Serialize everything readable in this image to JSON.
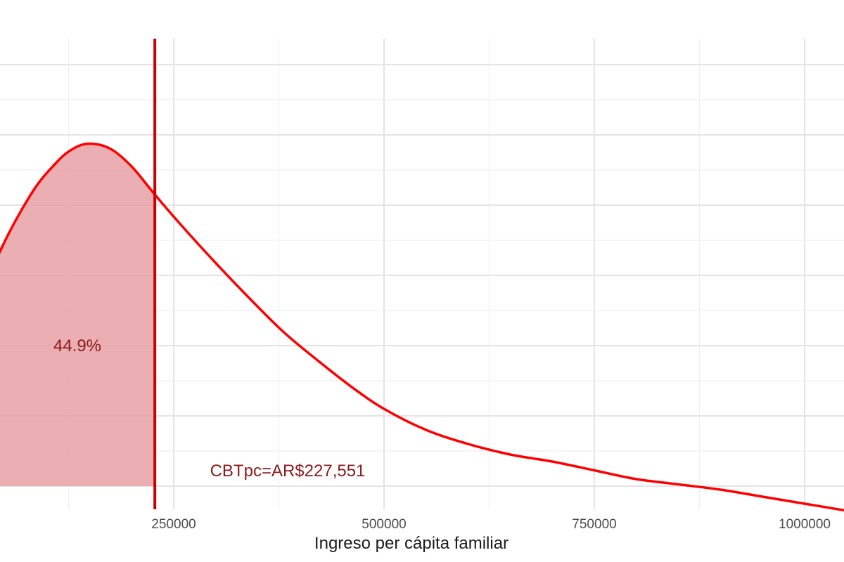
{
  "chart_data": {
    "type": "area",
    "title": "",
    "xlabel": "Ingreso per cápita familiar",
    "ylabel": "",
    "xlim": [
      0,
      1050000
    ],
    "x_ticks": [
      250000,
      500000,
      750000,
      1000000
    ],
    "x_tick_labels": [
      "250000",
      "500000",
      "750000",
      "1000000"
    ],
    "grid": true,
    "series": [
      {
        "x": [
          0,
          40000,
          80000,
          110000,
          130000,
          150000,
          175000,
          200000,
          227551,
          260000,
          300000,
          340000,
          380000,
          420000,
          460000,
          500000,
          550000,
          600000,
          650000,
          700000,
          750000,
          800000,
          850000,
          900000,
          950000,
          1000000,
          1050000
        ],
        "y": [
          0.4,
          0.65,
          0.83,
          0.92,
          0.96,
          0.975,
          0.96,
          0.91,
          0.83,
          0.74,
          0.635,
          0.535,
          0.44,
          0.36,
          0.285,
          0.22,
          0.16,
          0.12,
          0.09,
          0.07,
          0.045,
          0.02,
          0.005,
          -0.01,
          -0.03,
          -0.05,
          -0.07
        ]
      }
    ],
    "colors": {
      "line": "#ff0000",
      "fill": "#e8a0a4",
      "threshold": "#cc0000",
      "annotation": "#8b1a1a"
    },
    "threshold": {
      "x": 227551,
      "label": "CBTpc=AR$227,551"
    },
    "shaded_share": {
      "value": 44.9,
      "label": "44.9%"
    }
  }
}
